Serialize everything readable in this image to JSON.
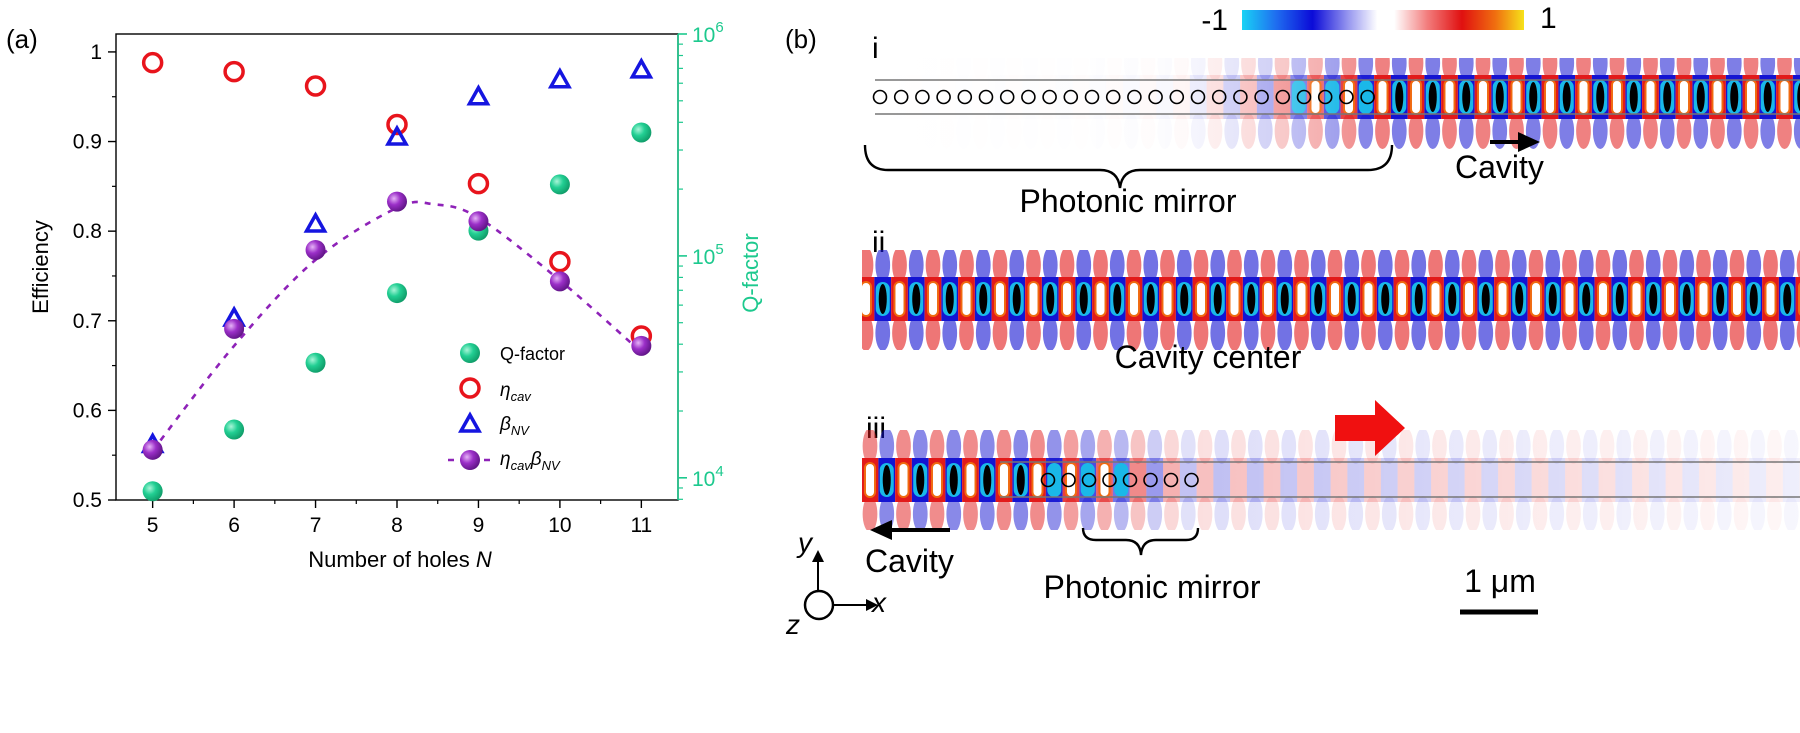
{
  "panels": {
    "a": {
      "label": "(a)"
    },
    "b": {
      "label": "(b)"
    }
  },
  "chart_data": {
    "type": "scatter",
    "xlabel": "Number of holes",
    "xlabel_var": "N",
    "ylabel": "Efficiency",
    "y2label": "Q-factor",
    "xlim": [
      4.55,
      11.45
    ],
    "ylim": [
      0.5,
      1.02
    ],
    "y2lim_log": [
      3.9,
      6.0
    ],
    "x_ticks": [
      "5",
      "6",
      "7",
      "8",
      "9",
      "10",
      "11"
    ],
    "y_ticks": [
      "0.5",
      "0.6",
      "0.7",
      "0.8",
      "0.9",
      "1"
    ],
    "y2_ticks": [
      {
        "base": "10",
        "exp": "4",
        "log": 4
      },
      {
        "base": "10",
        "exp": "5",
        "log": 5
      },
      {
        "base": "10",
        "exp": "6",
        "log": 6
      }
    ],
    "x": [
      5,
      6,
      7,
      8,
      9,
      10,
      11
    ],
    "series": [
      {
        "name": "Q-factor",
        "axis": "right",
        "marker": "filled-circle",
        "color": "#1dc98e",
        "values": [
          8700,
          16500,
          33000,
          68000,
          130000,
          210000,
          360000
        ]
      },
      {
        "name": "η_cav",
        "sym": "η",
        "sub": "cav",
        "axis": "left",
        "marker": "open-circle",
        "color": "#e8141c",
        "values": [
          0.988,
          0.978,
          0.962,
          0.919,
          0.853,
          0.766,
          0.683
        ]
      },
      {
        "name": "β_NV",
        "sym": "β",
        "sub": "NV",
        "axis": "left",
        "marker": "open-triangle",
        "color": "#1515e0",
        "values": [
          0.562,
          0.703,
          0.808,
          0.905,
          0.95,
          0.969,
          0.98
        ]
      },
      {
        "name": "η_cavβ_NV",
        "axis": "left",
        "marker": "filled-circle-dashed",
        "color": "#8e22b8",
        "values": [
          0.556,
          0.691,
          0.779,
          0.833,
          0.811,
          0.744,
          0.672
        ]
      }
    ],
    "legend_position": "lower-right",
    "fit_curve": {
      "x": [
        5,
        6,
        7,
        8,
        8.45,
        9,
        10,
        11
      ],
      "y": [
        0.555,
        0.672,
        0.768,
        0.826,
        0.83,
        0.815,
        0.745,
        0.665
      ]
    }
  },
  "panel_b": {
    "colorbar": {
      "min_label": "-1",
      "max_label": "1"
    },
    "rows": [
      {
        "roman": "i",
        "brace_label": "Photonic mirror",
        "arrow_label": "Cavity"
      },
      {
        "roman": "ii",
        "center_label": "Cavity center"
      },
      {
        "roman": "iii",
        "brace_label": "Photonic mirror",
        "arrow_label": "Cavity"
      }
    ],
    "axes": {
      "x": "x",
      "y": "y",
      "z": "z"
    },
    "scale_bar": "1 μm"
  }
}
